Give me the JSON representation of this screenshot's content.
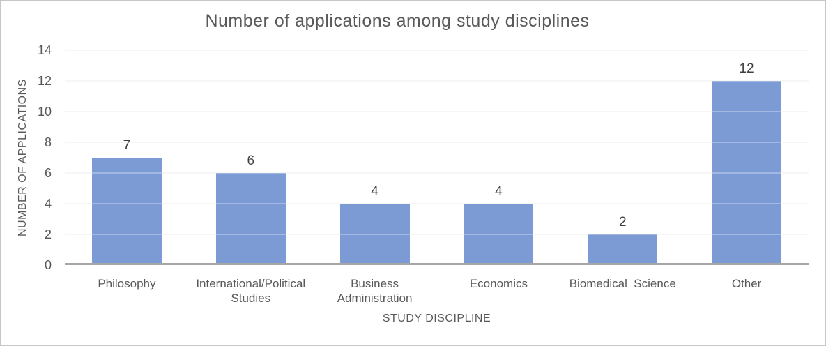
{
  "window": {
    "background": "#ffffff",
    "border_color": "#c6c6c6"
  },
  "chart_data": {
    "type": "bar",
    "title": "Number of applications among study disciplines",
    "xlabel": "STUDY DISCIPLINE",
    "ylabel": "NUMBER OF APPLICATIONS",
    "categories": [
      "Philosophy",
      "International/Political Studies",
      "Business Administration",
      "Economics",
      "Biomedical  Science",
      "Other"
    ],
    "values": [
      7,
      6,
      4,
      4,
      2,
      12
    ],
    "ylim": [
      0,
      14
    ],
    "yticks": [
      0,
      2,
      4,
      6,
      8,
      10,
      12,
      14
    ],
    "grid": true,
    "legend": "none",
    "data_labels_shown": true,
    "colors": {
      "bar": "#7C9AD3",
      "gridline": "#F2F2F2",
      "axis_line": "#A6A6A6",
      "title_text": "#595959",
      "tick_text": "#595959",
      "data_label_text": "#404040"
    }
  }
}
